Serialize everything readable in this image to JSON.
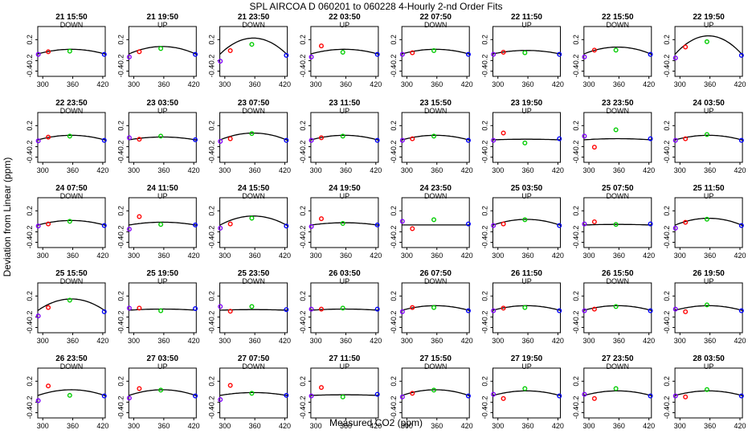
{
  "figure": {
    "title": "SPL   AIRCOA D    060201 to 060228   4-Hourly 2-nd Order Fits",
    "xlabel": "Measured CO2 (ppm)",
    "ylabel": "Deviation from Linear (ppm)"
  },
  "chart_data": {
    "type": "scatter",
    "title": "SPL   AIRCOA D    060201 to 060228   4-Hourly 2-nd Order Fits",
    "xlabel": "Measured CO2 (ppm)",
    "ylabel": "Deviation from Linear (ppm)",
    "xlim": [
      290,
      425
    ],
    "ylim": [
      -0.5,
      0.45
    ],
    "xticks": [
      300,
      360,
      420
    ],
    "yticks": [
      -0.4,
      -0.2,
      0.2
    ],
    "ytick_labels": [
      "-0.4",
      "-0.2",
      "0.2"
    ],
    "point_x": [
      291,
      311,
      354,
      423
    ],
    "point_colors": [
      "#8000ff",
      "#ff0000",
      "#00cc00",
      "#0000ff"
    ],
    "grid": false,
    "panels": [
      {
        "title": "21 15:50",
        "dir": "DOWN",
        "a": 1.97e-05,
        "d": [
          -0.08,
          -0.03,
          -0.02,
          -0.08
        ]
      },
      {
        "title": "21 19:50",
        "dir": "UP",
        "a": 3.19e-05,
        "d": [
          -0.13,
          -0.03,
          0.03,
          -0.08
        ]
      },
      {
        "title": "21 23:50",
        "dir": "DOWN",
        "a": 6.88e-05,
        "d": [
          -0.21,
          -0.01,
          0.11,
          -0.1
        ]
      },
      {
        "title": "22 03:50",
        "dir": "UP",
        "a": 1.97e-05,
        "d": [
          -0.13,
          0.08,
          -0.04,
          -0.08
        ]
      },
      {
        "title": "22 07:50",
        "dir": "DOWN",
        "a": 1.97e-05,
        "d": [
          -0.08,
          -0.05,
          -0.01,
          -0.08
        ]
      },
      {
        "title": "22 11:50",
        "dir": "UP",
        "a": 1.47e-05,
        "d": [
          -0.08,
          -0.04,
          -0.05,
          -0.08
        ]
      },
      {
        "title": "22 15:50",
        "dir": "DOWN",
        "a": 2.95e-05,
        "d": [
          -0.13,
          0.0,
          0.0,
          -0.08
        ]
      },
      {
        "title": "22 19:50",
        "dir": "UP",
        "a": 7.86e-05,
        "d": [
          -0.15,
          0.06,
          0.16,
          -0.1
        ]
      },
      {
        "title": "22 23:50",
        "dir": "DOWN",
        "a": 1.97e-05,
        "d": [
          -0.09,
          -0.02,
          0.0,
          -0.08
        ]
      },
      {
        "title": "23 03:50",
        "dir": "UP",
        "a": 1.23e-05,
        "d": [
          -0.03,
          -0.06,
          0.0,
          -0.07
        ]
      },
      {
        "title": "23 07:50",
        "dir": "DOWN",
        "a": 2.95e-05,
        "d": [
          -0.1,
          -0.05,
          0.05,
          -0.08
        ]
      },
      {
        "title": "23 11:50",
        "dir": "UP",
        "a": 1.97e-05,
        "d": [
          -0.08,
          -0.03,
          0.0,
          -0.08
        ]
      },
      {
        "title": "23 15:50",
        "dir": "DOWN",
        "a": 1.97e-05,
        "d": [
          -0.08,
          -0.05,
          0.0,
          -0.08
        ]
      },
      {
        "title": "23 19:50",
        "dir": "UP",
        "a": 2.5e-06,
        "d": [
          -0.08,
          0.06,
          -0.13,
          -0.05
        ]
      },
      {
        "title": "23 23:50",
        "dir": "DOWN",
        "a": 4.9e-06,
        "d": [
          0.0,
          -0.21,
          0.12,
          -0.05
        ]
      },
      {
        "title": "24 03:50",
        "dir": "UP",
        "a": 1.97e-05,
        "d": [
          -0.08,
          -0.05,
          0.03,
          -0.08
        ]
      },
      {
        "title": "24 07:50",
        "dir": "DOWN",
        "a": 1.97e-05,
        "d": [
          -0.09,
          -0.05,
          0.0,
          -0.08
        ]
      },
      {
        "title": "24 11:50",
        "dir": "UP",
        "a": 1.23e-05,
        "d": [
          -0.15,
          0.09,
          -0.06,
          -0.07
        ]
      },
      {
        "title": "24 15:50",
        "dir": "DOWN",
        "a": 3.93e-05,
        "d": [
          -0.13,
          -0.05,
          0.06,
          -0.09
        ]
      },
      {
        "title": "24 19:50",
        "dir": "UP",
        "a": 9.8e-06,
        "d": [
          -0.1,
          0.05,
          -0.04,
          -0.07
        ]
      },
      {
        "title": "24 23:50",
        "dir": "DOWN",
        "a": 0.0,
        "d": [
          0.0,
          -0.14,
          0.03,
          -0.05
        ]
      },
      {
        "title": "25 03:50",
        "dir": "UP",
        "a": 2.46e-05,
        "d": [
          -0.08,
          -0.05,
          0.03,
          -0.08
        ]
      },
      {
        "title": "25 07:50",
        "dir": "DOWN",
        "a": 2.5e-06,
        "d": [
          -0.05,
          -0.01,
          -0.06,
          -0.05
        ]
      },
      {
        "title": "25 11:50",
        "dir": "UP",
        "a": 2.95e-05,
        "d": [
          -0.13,
          -0.02,
          0.04,
          -0.08
        ]
      },
      {
        "title": "25 15:50",
        "dir": "DOWN",
        "a": 4.91e-05,
        "d": [
          -0.18,
          -0.02,
          0.12,
          -0.1
        ]
      },
      {
        "title": "25 19:50",
        "dir": "UP",
        "a": 4.9e-06,
        "d": [
          -0.03,
          -0.03,
          -0.08,
          -0.04
        ]
      },
      {
        "title": "25 23:50",
        "dir": "DOWN",
        "a": 2.5e-06,
        "d": [
          0.0,
          -0.09,
          0.0,
          -0.06
        ]
      },
      {
        "title": "26 03:50",
        "dir": "UP",
        "a": 4.9e-06,
        "d": [
          -0.05,
          -0.05,
          -0.03,
          -0.05
        ]
      },
      {
        "title": "26 07:50",
        "dir": "DOWN",
        "a": 1.97e-05,
        "d": [
          -0.1,
          -0.02,
          -0.02,
          -0.08
        ]
      },
      {
        "title": "26 11:50",
        "dir": "UP",
        "a": 1.97e-05,
        "d": [
          -0.08,
          -0.03,
          -0.02,
          -0.08
        ]
      },
      {
        "title": "26 15:50",
        "dir": "DOWN",
        "a": 1.97e-05,
        "d": [
          -0.08,
          -0.05,
          0.0,
          -0.08
        ]
      },
      {
        "title": "26 19:50",
        "dir": "UP",
        "a": 1.97e-05,
        "d": [
          -0.05,
          -0.1,
          0.03,
          -0.08
        ]
      },
      {
        "title": "26 23:50",
        "dir": "DOWN",
        "a": 2.46e-05,
        "d": [
          -0.17,
          0.11,
          -0.07,
          -0.08
        ]
      },
      {
        "title": "27 03:50",
        "dir": "UP",
        "a": 2.46e-05,
        "d": [
          -0.12,
          0.06,
          0.03,
          -0.08
        ]
      },
      {
        "title": "27 07:50",
        "dir": "DOWN",
        "a": 1.23e-05,
        "d": [
          -0.15,
          0.12,
          -0.03,
          -0.07
        ]
      },
      {
        "title": "27 11:50",
        "dir": "UP",
        "a": 2.5e-06,
        "d": [
          -0.08,
          0.08,
          -0.1,
          -0.05
        ]
      },
      {
        "title": "27 15:50",
        "dir": "DOWN",
        "a": 2.46e-05,
        "d": [
          -0.1,
          -0.03,
          0.03,
          -0.08
        ]
      },
      {
        "title": "27 19:50",
        "dir": "UP",
        "a": 1.97e-05,
        "d": [
          -0.05,
          -0.13,
          0.06,
          -0.08
        ]
      },
      {
        "title": "27 23:50",
        "dir": "DOWN",
        "a": 1.97e-05,
        "d": [
          -0.05,
          -0.13,
          0.06,
          -0.08
        ]
      },
      {
        "title": "28 03:50",
        "dir": "UP",
        "a": 1.97e-05,
        "d": [
          -0.08,
          -0.1,
          0.04,
          -0.08
        ]
      }
    ]
  }
}
